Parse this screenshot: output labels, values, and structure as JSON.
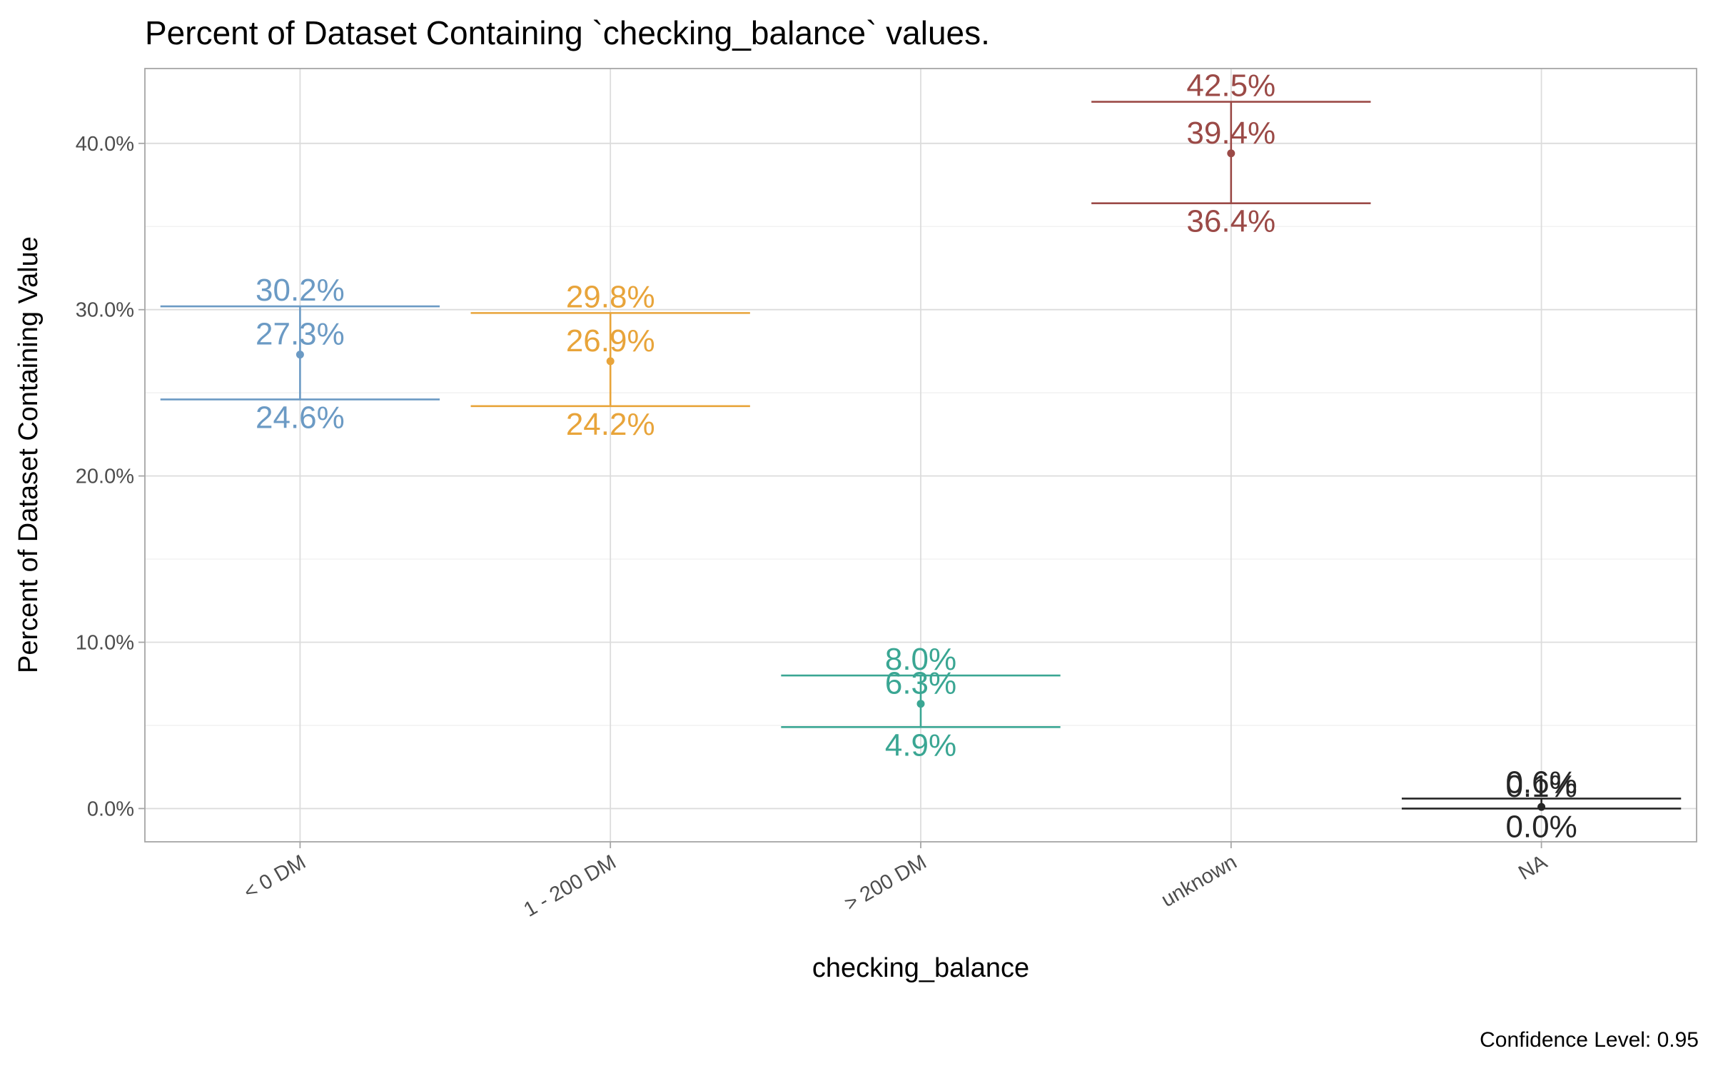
{
  "chart_data": {
    "type": "errorbar",
    "title": "Percent of Dataset Containing `checking_balance` values.",
    "xlabel": "checking_balance",
    "ylabel": "Percent of Dataset Containing Value",
    "caption": "Confidence Level: 0.95",
    "ylim": [
      -2.0,
      44.5
    ],
    "y_ticks": [
      0,
      10,
      20,
      30,
      40
    ],
    "y_tick_labels": [
      "0.0%",
      "10.0%",
      "20.0%",
      "30.0%",
      "40.0%"
    ],
    "y_minor_ticks": [
      5,
      15,
      25,
      35
    ],
    "grid": true,
    "legend": "none",
    "categories": [
      "< 0 DM",
      "1 - 200 DM",
      "> 200 DM",
      "unknown",
      "NA"
    ],
    "colors": [
      "#6b9ac4",
      "#e8a43a",
      "#3aa693",
      "#9b4a47",
      "#262626"
    ],
    "estimate": [
      27.3,
      26.9,
      6.3,
      39.4,
      0.1
    ],
    "lower": [
      24.6,
      24.2,
      4.9,
      36.4,
      0.0
    ],
    "upper": [
      30.2,
      29.8,
      8.0,
      42.5,
      0.6
    ],
    "estimate_labels": [
      "27.3%",
      "26.9%",
      "6.3%",
      "39.4%",
      "0.1%"
    ],
    "lower_labels": [
      "24.6%",
      "24.2%",
      "4.9%",
      "36.4%",
      "0.0%"
    ],
    "upper_labels": [
      "30.2%",
      "29.8%",
      "8.0%",
      "42.5%",
      "0.6%"
    ]
  }
}
